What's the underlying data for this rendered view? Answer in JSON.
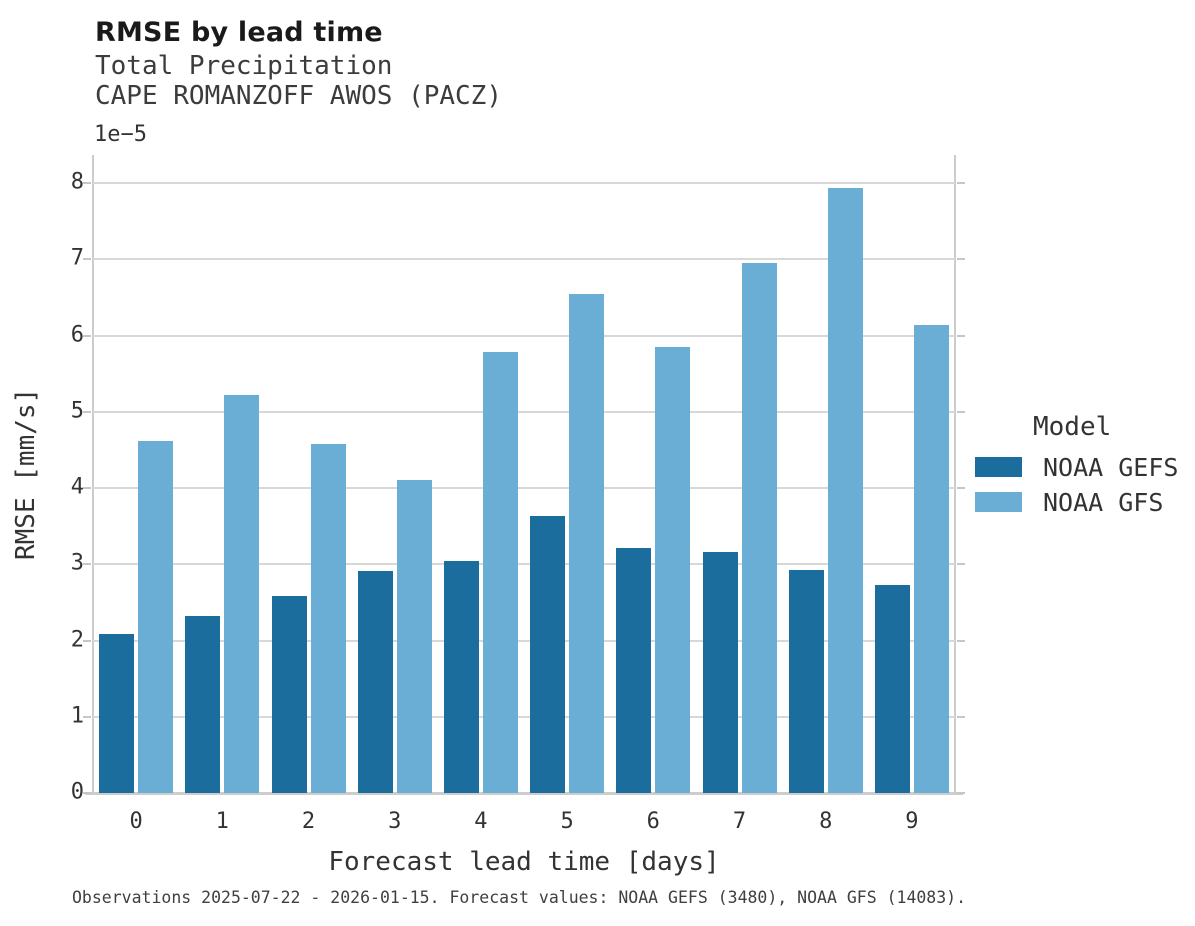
{
  "header": {
    "title": "RMSE by lead time",
    "subtitle1": "Total Precipitation",
    "subtitle2": "CAPE ROMANZOFF AWOS (PACZ)"
  },
  "axes": {
    "y_offset_label": "1e−5",
    "ylabel": "RMSE [mm/s]",
    "xlabel": "Forecast lead time [days]",
    "yticks": [
      "0",
      "1",
      "2",
      "3",
      "4",
      "5",
      "6",
      "7",
      "8"
    ],
    "xticks": [
      "0",
      "1",
      "2",
      "3",
      "4",
      "5",
      "6",
      "7",
      "8",
      "9"
    ]
  },
  "legend": {
    "title": "Model"
  },
  "footer": {
    "text": "Observations 2025-07-22 - 2026-01-15. Forecast values: NOAA GEFS (3480), NOAA GFS (14083)."
  },
  "chart_data": {
    "type": "bar",
    "title": "RMSE by lead time",
    "subtitle": [
      "Total Precipitation",
      "CAPE ROMANZOFF AWOS (PACZ)"
    ],
    "categories": [
      "0",
      "1",
      "2",
      "3",
      "4",
      "5",
      "6",
      "7",
      "8",
      "9"
    ],
    "series": [
      {
        "name": "NOAA GEFS",
        "color": "#1b6d9d",
        "values": [
          2.08,
          2.32,
          2.59,
          2.91,
          3.05,
          3.63,
          3.22,
          3.16,
          2.92,
          2.73
        ]
      },
      {
        "name": "NOAA GFS",
        "color": "#6aaed6",
        "values": [
          4.62,
          5.22,
          4.58,
          4.11,
          5.78,
          6.55,
          5.85,
          6.95,
          7.94,
          6.14
        ]
      }
    ],
    "value_multiplier": 1e-05,
    "xlabel": "Forecast lead time [days]",
    "ylabel": "RMSE [mm/s]",
    "ylim": [
      0,
      8.37
    ],
    "yticks": [
      0,
      1,
      2,
      3,
      4,
      5,
      6,
      7,
      8
    ],
    "grid": "horizontal",
    "legend_title": "Model",
    "legend_position": "right"
  }
}
